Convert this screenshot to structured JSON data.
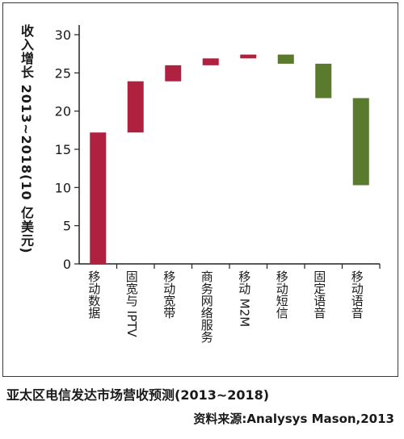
{
  "chart_data": {
    "type": "bar",
    "subtype": "waterfall",
    "ylabel": "收入增长 2013~2018(10 亿美元)",
    "ylim": [
      0,
      30
    ],
    "yticks": [
      0,
      5,
      10,
      15,
      20,
      25,
      30
    ],
    "grid": false,
    "colors": {
      "increase": "#b0203f",
      "decrease": "#5a7a2e"
    },
    "categories": [
      "移动数据",
      "固宽与 IPTV",
      "移动宽带",
      "商务网络服务",
      "移动 M2M",
      "移动短信",
      "固定语音",
      "移动语音"
    ],
    "bars": [
      {
        "start": 0,
        "end": 17.2,
        "direction": "increase"
      },
      {
        "start": 17.2,
        "end": 23.9,
        "direction": "increase"
      },
      {
        "start": 23.9,
        "end": 26.0,
        "direction": "increase"
      },
      {
        "start": 26.0,
        "end": 26.9,
        "direction": "increase"
      },
      {
        "start": 26.9,
        "end": 27.4,
        "direction": "increase"
      },
      {
        "start": 27.4,
        "end": 26.2,
        "direction": "decrease"
      },
      {
        "start": 26.2,
        "end": 21.7,
        "direction": "decrease"
      },
      {
        "start": 21.7,
        "end": 10.3,
        "direction": "decrease"
      }
    ]
  },
  "caption": "亚太区电信发达市场营收预测(2013~2018)",
  "source": "资料来源:Analysys Mason,2013"
}
